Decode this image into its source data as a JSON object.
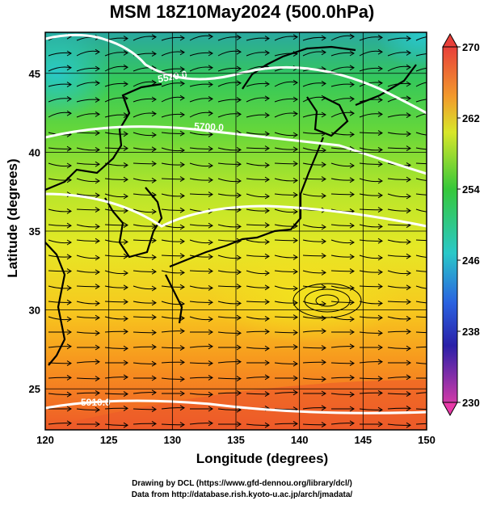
{
  "title": "MSM 18Z10May2024 (500.0hPa)",
  "axes": {
    "xlabel": "Longitude (degrees)",
    "ylabel": "Latitude  (degrees)",
    "xticks": [
      "120",
      "125",
      "130",
      "135",
      "140",
      "145",
      "150"
    ],
    "yticks": [
      "25",
      "30",
      "35",
      "40",
      "45"
    ]
  },
  "colorbar": {
    "labels": [
      "270",
      "262",
      "254",
      "246",
      "238",
      "230"
    ],
    "colors": [
      "#e8403a",
      "#f29a2c",
      "#d8e62a",
      "#36c83a",
      "#2ac8c8",
      "#2a62e0",
      "#2a20a8",
      "#d03aa8"
    ]
  },
  "contours": {
    "labels": [
      "5520.0",
      "5700.0",
      "5910.0"
    ]
  },
  "credits": {
    "line1": "Drawing by DCL (https://www.gfd-dennou.org/library/dcl/)",
    "line2": "Data from http://database.rish.kyoto-u.ac.jp/arch/jmadata/"
  },
  "chart_data": {
    "type": "heatmap",
    "title": "MSM 18Z10May2024 (500.0hPa)",
    "xlabel": "Longitude (degrees)",
    "ylabel": "Latitude  (degrees)",
    "xlim": [
      120,
      150
    ],
    "ylim": [
      22.4,
      47.6
    ],
    "field_range": [
      230,
      270
    ],
    "colorbar_ticks": [
      270,
      262,
      254,
      246,
      238,
      230
    ],
    "contour_labels": [
      5520.0,
      5700.0,
      5910.0
    ],
    "overlay": "streamlines, coastlines, white height contours"
  }
}
